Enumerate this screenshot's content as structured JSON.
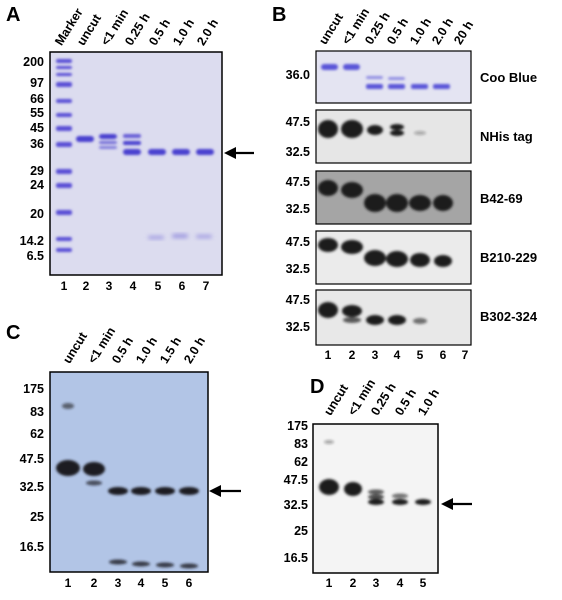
{
  "panels": {
    "A": {
      "letter": "A",
      "lanes": [
        "Marker",
        "uncut",
        "<1 min",
        "0.25 h",
        "0.5 h",
        "1.0 h",
        "2.0 h"
      ],
      "markers": [
        "200",
        "97",
        "66",
        "55",
        "45",
        "36",
        "29",
        "24",
        "20",
        "14.2",
        "6.5"
      ],
      "lane_numbers": [
        "1",
        "2",
        "3",
        "4",
        "5",
        "6",
        "7"
      ]
    },
    "B": {
      "letter": "B",
      "lanes": [
        "uncut",
        "<1 min",
        "0.25 h",
        "0.5 h",
        "1.0 h",
        "2.0 h",
        "20 h"
      ],
      "blots": [
        {
          "label": "Coo Blue",
          "markers": [
            "36.0"
          ]
        },
        {
          "label": "NHis tag",
          "markers": [
            "47.5",
            "32.5"
          ]
        },
        {
          "label": "B42-69",
          "markers": [
            "47.5",
            "32.5"
          ]
        },
        {
          "label": "B210-229",
          "markers": [
            "47.5",
            "32.5"
          ]
        },
        {
          "label": "B302-324",
          "markers": [
            "47.5",
            "32.5"
          ]
        }
      ],
      "lane_numbers": [
        "1",
        "2",
        "3",
        "4",
        "5",
        "6",
        "7"
      ]
    },
    "C": {
      "letter": "C",
      "lanes": [
        "uncut",
        "<1 min",
        "0.5 h",
        "1.0 h",
        "1.5 h",
        "2.0 h"
      ],
      "markers": [
        "175",
        "83",
        "62",
        "47.5",
        "32.5",
        "25",
        "16.5"
      ],
      "lane_numbers": [
        "1",
        "2",
        "3",
        "4",
        "5",
        "6"
      ]
    },
    "D": {
      "letter": "D",
      "lanes": [
        "uncut",
        "<1 min",
        "0.25 h",
        "0.5 h",
        "1.0 h"
      ],
      "markers": [
        "175",
        "83",
        "62",
        "47.5",
        "32.5",
        "25",
        "16.5"
      ],
      "lane_numbers": [
        "1",
        "2",
        "3",
        "4",
        "5"
      ]
    }
  }
}
